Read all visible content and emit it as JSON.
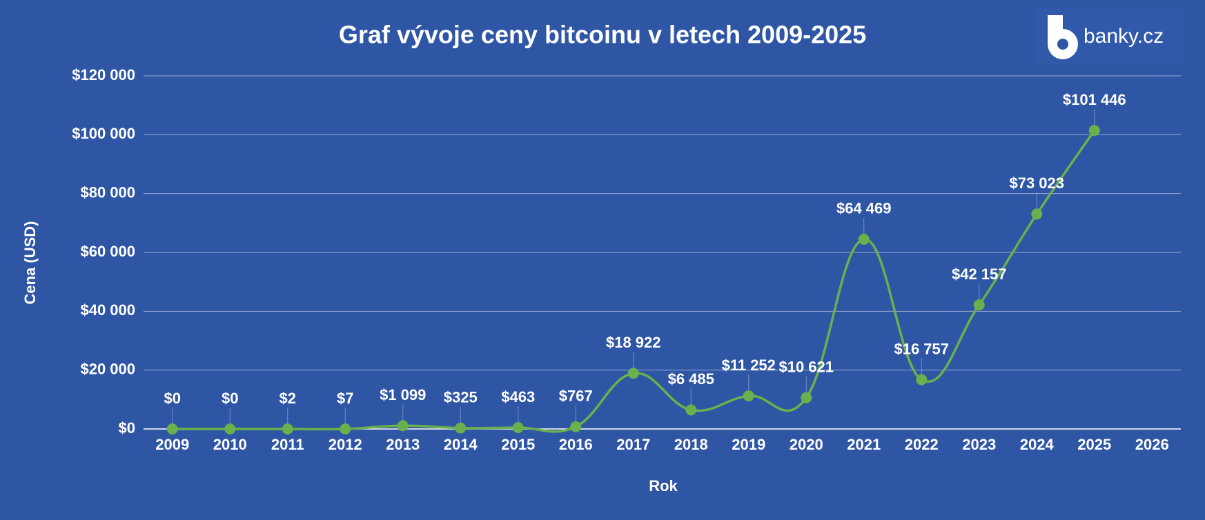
{
  "brand": "banky.cz",
  "chart_data": {
    "type": "line",
    "title": "Graf vývoje ceny bitcoinu v letech 2009-2025",
    "x_label": "Rok",
    "y_label": "Cena (USD)",
    "categories": [
      "2009",
      "2010",
      "2011",
      "2012",
      "2013",
      "2014",
      "2015",
      "2016",
      "2017",
      "2018",
      "2019",
      "2020",
      "2021",
      "2022",
      "2023",
      "2024",
      "2025",
      "2026"
    ],
    "series": [
      {
        "name": "Cena",
        "color": "#6ab04c",
        "values": [
          0,
          0,
          2,
          7,
          1099,
          325,
          463,
          767,
          18922,
          6485,
          11252,
          10621,
          64469,
          16757,
          42157,
          73023,
          101446,
          null
        ],
        "value_labels": [
          "$0",
          "$0",
          "$2",
          "$7",
          "$1 099",
          "$325",
          "$463",
          "$767",
          "$18 922",
          "$6 485",
          "$11 252",
          "$10 621",
          "$64 469",
          "$16 757",
          "$42 157",
          "$73 023",
          "$101 446",
          null
        ]
      }
    ],
    "ylim": [
      0,
      120000
    ],
    "yticks": [
      {
        "value": 0,
        "label": "$0"
      },
      {
        "value": 20000,
        "label": "$20 000"
      },
      {
        "value": 40000,
        "label": "$40 000"
      },
      {
        "value": 60000,
        "label": "$60 000"
      },
      {
        "value": 80000,
        "label": "$80 000"
      },
      {
        "value": 100000,
        "label": "$100 000"
      },
      {
        "value": 120000,
        "label": "$120 000"
      }
    ],
    "grid": true
  }
}
